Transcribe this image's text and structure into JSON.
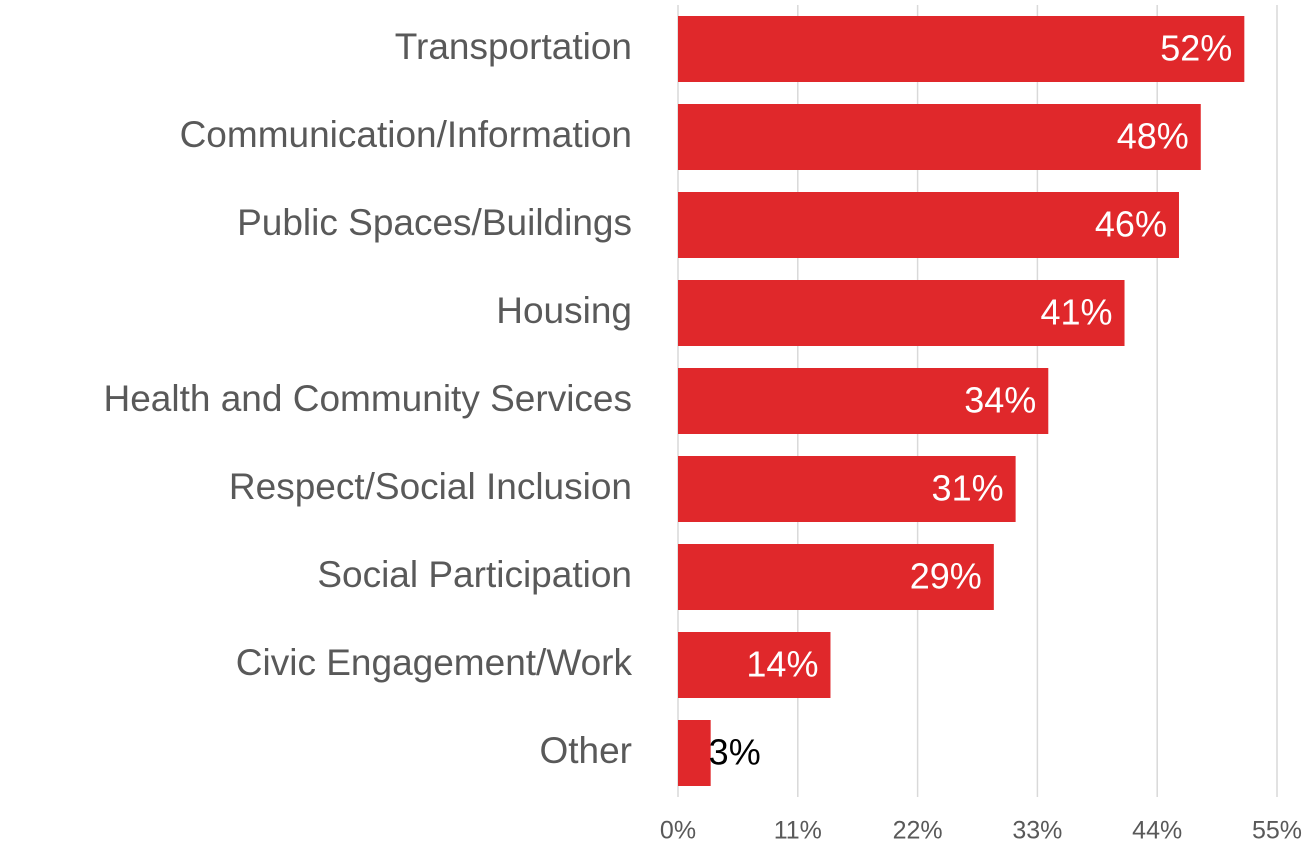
{
  "chart_data": {
    "type": "bar",
    "orientation": "horizontal",
    "categories": [
      "Transportation",
      "Communication/Information",
      "Public Spaces/Buildings",
      "Housing",
      "Health and Community Services",
      "Respect/Social Inclusion",
      "Social Participation",
      "Civic Engagement/Work",
      "Other"
    ],
    "values": [
      52,
      48,
      46,
      41,
      34,
      31,
      29,
      14,
      3
    ],
    "value_labels": [
      "52%",
      "48%",
      "46%",
      "41%",
      "34%",
      "31%",
      "29%",
      "14%",
      "3%"
    ],
    "color": "#e0282b",
    "xlim": [
      0,
      55
    ],
    "xticks": [
      {
        "value": 0,
        "label": "0%"
      },
      {
        "value": 11,
        "label": "11%"
      },
      {
        "value": 22,
        "label": "22%"
      },
      {
        "value": 33,
        "label": "33%"
      },
      {
        "value": 44,
        "label": "44%"
      },
      {
        "value": 55,
        "label": "55%"
      }
    ],
    "grid": true
  }
}
